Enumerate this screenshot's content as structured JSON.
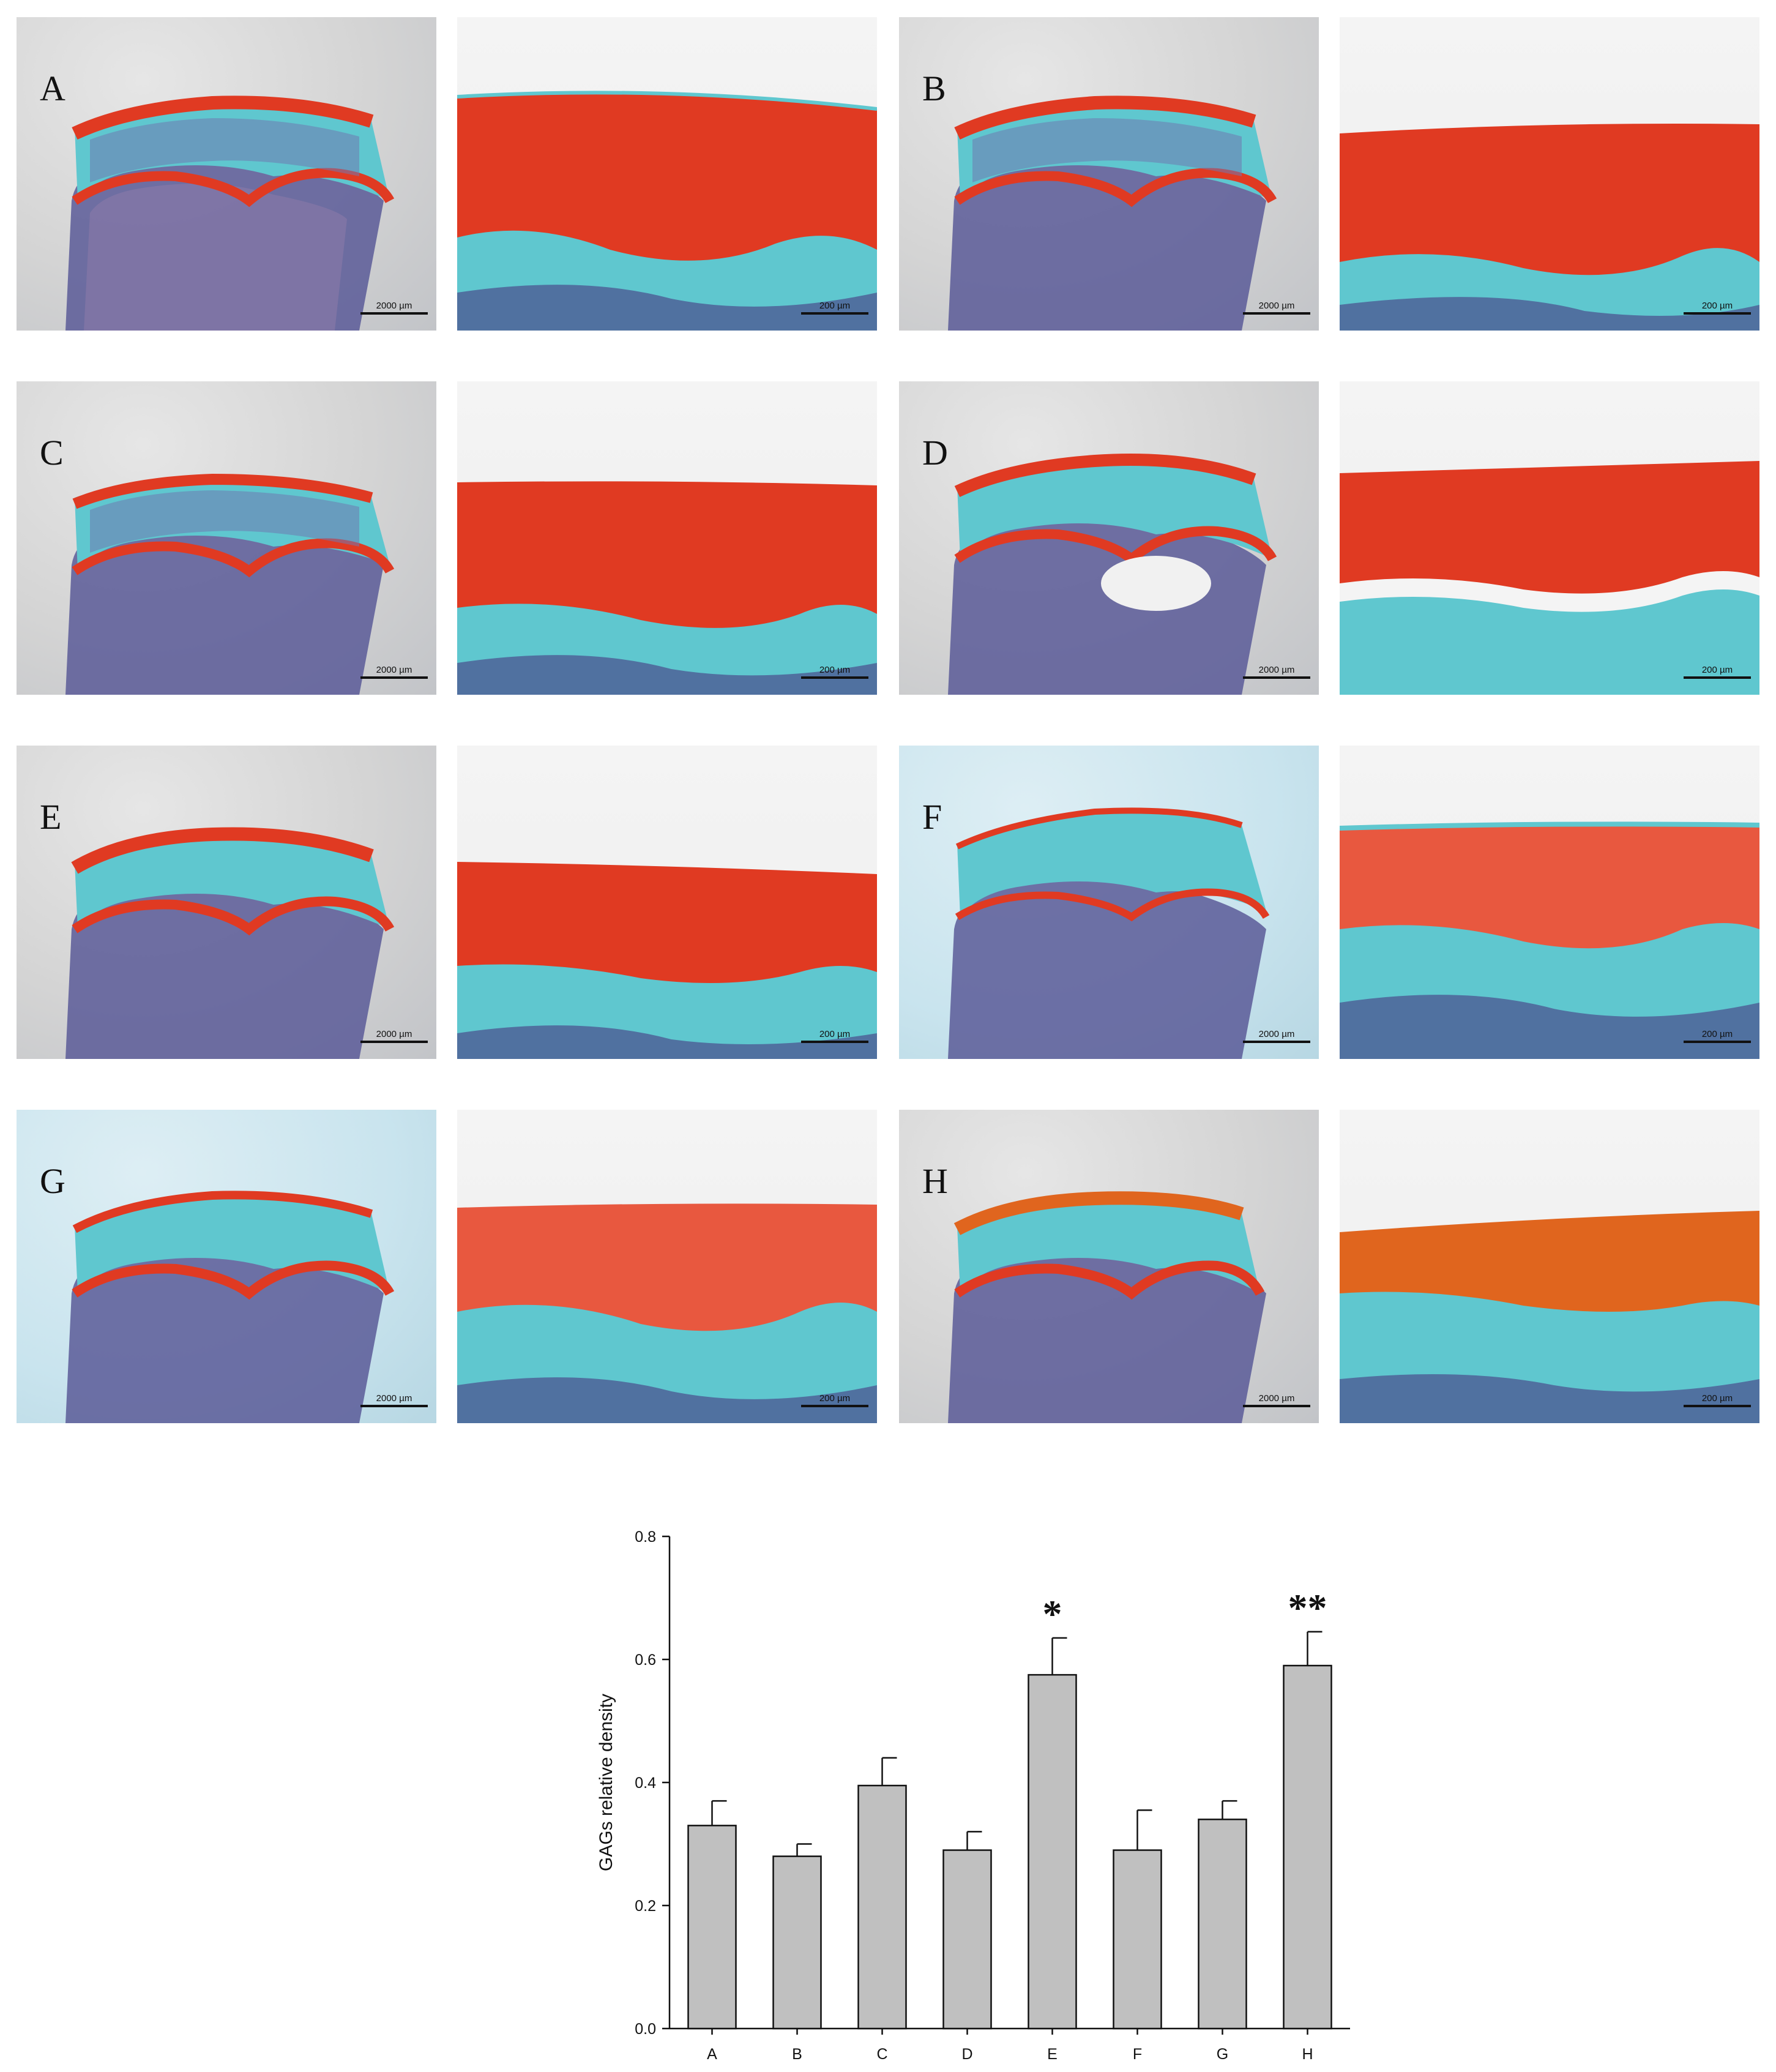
{
  "panels": [
    {
      "label": "A",
      "scale_low": "2000 µm",
      "scale_high": "200 µm"
    },
    {
      "label": "B",
      "scale_low": "2000 µm",
      "scale_high": "200 µm"
    },
    {
      "label": "C",
      "scale_low": "2000 µm",
      "scale_high": "200 µm"
    },
    {
      "label": "D",
      "scale_low": "2000 µm",
      "scale_high": "200 µm"
    },
    {
      "label": "E",
      "scale_low": "2000 µm",
      "scale_high": "200 µm"
    },
    {
      "label": "F",
      "scale_low": "2000 µm",
      "scale_high": "200 µm"
    },
    {
      "label": "G",
      "scale_low": "2000 µm",
      "scale_high": "200 µm"
    },
    {
      "label": "H",
      "scale_low": "2000 µm",
      "scale_high": "200 µm"
    }
  ],
  "colors": {
    "safranin": "#e03a22",
    "fast_green": "#5fc7cf",
    "hematoxylin": "#4a4d8c",
    "bar_fill": "#c0c0c0",
    "bar_stroke": "#111111"
  },
  "chart_data": {
    "type": "bar",
    "categories": [
      "A",
      "B",
      "C",
      "D",
      "E",
      "F",
      "G",
      "H"
    ],
    "values": [
      0.33,
      0.28,
      0.395,
      0.29,
      0.575,
      0.29,
      0.34,
      0.59
    ],
    "errors": [
      0.04,
      0.02,
      0.045,
      0.03,
      0.06,
      0.065,
      0.03,
      0.055
    ],
    "significance": [
      "",
      "",
      "",
      "",
      "*",
      "",
      "",
      "**"
    ],
    "xlabel": "",
    "ylabel": "GAGs relative density",
    "ylim": [
      0.0,
      0.8
    ],
    "yticks": [
      "0.0",
      "0.2",
      "0.4",
      "0.6",
      "0.8"
    ],
    "grid": false,
    "legend": "none"
  }
}
